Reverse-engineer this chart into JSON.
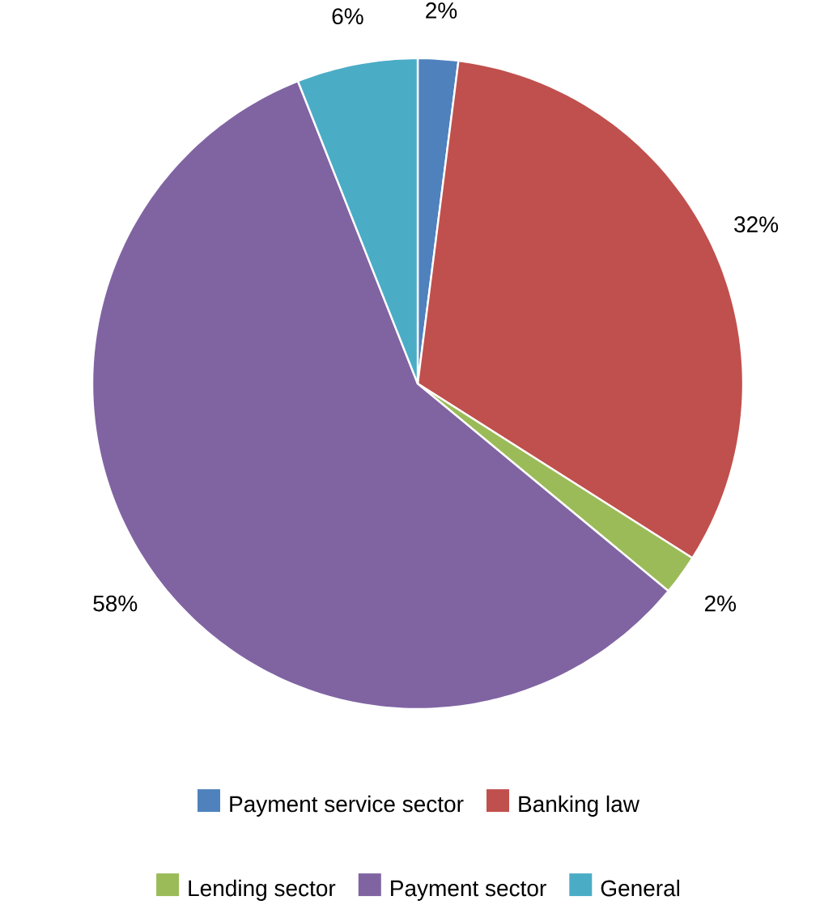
{
  "chart_data": {
    "type": "pie",
    "categories": [
      "Payment service sector",
      "Banking law",
      "Lending sector",
      "Payment sector",
      "General"
    ],
    "values": [
      2,
      32,
      2,
      58,
      6
    ],
    "colors": [
      "#4f81bd",
      "#c0504d",
      "#9bbb59",
      "#8064a2",
      "#4bacc6"
    ],
    "value_labels": [
      "2%",
      "32%",
      "2%",
      "58%",
      "6%"
    ],
    "legend": "bottom"
  }
}
